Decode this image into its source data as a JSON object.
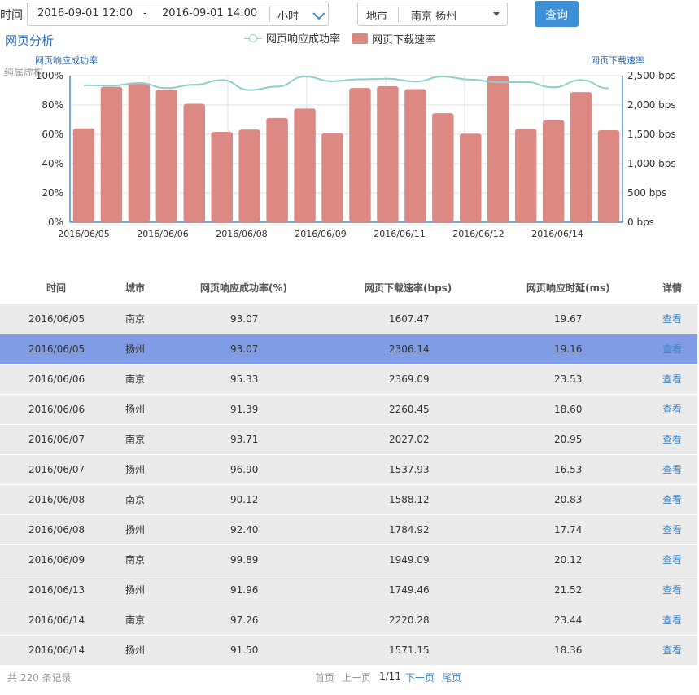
{
  "filters": {
    "time_label": "时间",
    "start": "2016-09-01 12:00",
    "dash": "-",
    "end": "2016-09-01 14:00",
    "granularity": "小时",
    "city_label": "地市",
    "city_value": "南京 扬州",
    "query_label": "查询"
  },
  "section_title": "网页分析",
  "watermark": "纯属虚构",
  "legend": {
    "line": "网页响应成功率",
    "bar": "网页下载速率"
  },
  "colors": {
    "bar": "#dc8984",
    "line": "#8fcfcc",
    "accent": "#3d8fd6",
    "selected_row": "#7f9ce4"
  },
  "chart_data": {
    "type": "bar",
    "left_axis": {
      "label": "网页响应成功率",
      "ticks": [
        "0%",
        "20%",
        "40%",
        "60%",
        "80%",
        "100%"
      ],
      "range": [
        0,
        100
      ]
    },
    "right_axis": {
      "label": "网页下载速率",
      "ticks": [
        "0 bps",
        "500 bps",
        "1,000 bps",
        "1,500 bps",
        "2,000 bps",
        "2,500 bps"
      ],
      "range": [
        0,
        2500
      ]
    },
    "x_tick_labels": [
      "2016/06/05",
      "2016/06/06",
      "2016/06/08",
      "2016/06/09",
      "2016/06/11",
      "2016/06/12",
      "2016/06/14"
    ],
    "grid": true,
    "series": [
      {
        "name": "网页下载速率",
        "type": "bar",
        "axis": "right",
        "values": [
          1600,
          2310,
          2360,
          2260,
          2020,
          1540,
          1580,
          1780,
          1940,
          1520,
          2290,
          2320,
          2270,
          1860,
          1510,
          2490,
          1590,
          1740,
          2220,
          1570
        ]
      },
      {
        "name": "网页响应成功率",
        "type": "line",
        "axis": "left",
        "values": [
          93.5,
          93.2,
          95,
          91.5,
          93.8,
          97,
          90.2,
          92.6,
          99.4,
          96.2,
          97.5,
          97.9,
          96,
          99.4,
          97.3,
          95.5,
          95.6,
          92,
          97,
          91.4
        ]
      }
    ]
  },
  "table": {
    "headers": [
      "时间",
      "城市",
      "网页响应成功率(%)",
      "网页下载速率(bps)",
      "网页响应时延(ms)",
      "详情"
    ],
    "rows": [
      [
        "2016/06/05",
        "南京",
        "93.07",
        "1607.47",
        "19.67",
        "查看"
      ],
      [
        "2016/06/05",
        "扬州",
        "93.07",
        "2306.14",
        "19.16",
        "查看"
      ],
      [
        "2016/06/06",
        "南京",
        "95.33",
        "2369.09",
        "23.53",
        "查看"
      ],
      [
        "2016/06/06",
        "扬州",
        "91.39",
        "2260.45",
        "18.60",
        "查看"
      ],
      [
        "2016/06/07",
        "南京",
        "93.71",
        "2027.02",
        "20.95",
        "查看"
      ],
      [
        "2016/06/07",
        "扬州",
        "96.90",
        "1537.93",
        "16.53",
        "查看"
      ],
      [
        "2016/06/08",
        "南京",
        "90.12",
        "1588.12",
        "20.83",
        "查看"
      ],
      [
        "2016/06/08",
        "扬州",
        "92.40",
        "1784.92",
        "17.74",
        "查看"
      ],
      [
        "2016/06/09",
        "南京",
        "99.89",
        "1949.09",
        "20.12",
        "查看"
      ],
      [
        "2016/06/13",
        "扬州",
        "91.96",
        "1749.46",
        "21.52",
        "查看"
      ],
      [
        "2016/06/14",
        "南京",
        "97.26",
        "2220.28",
        "23.44",
        "查看"
      ],
      [
        "2016/06/14",
        "扬州",
        "91.50",
        "1571.15",
        "18.36",
        "查看"
      ]
    ],
    "selected_row_index": 1
  },
  "pagination": {
    "total": "共 220 条记录",
    "first": "首页",
    "prev": "上一页",
    "page": "1/11",
    "next": "下一页",
    "last": "尾页"
  }
}
